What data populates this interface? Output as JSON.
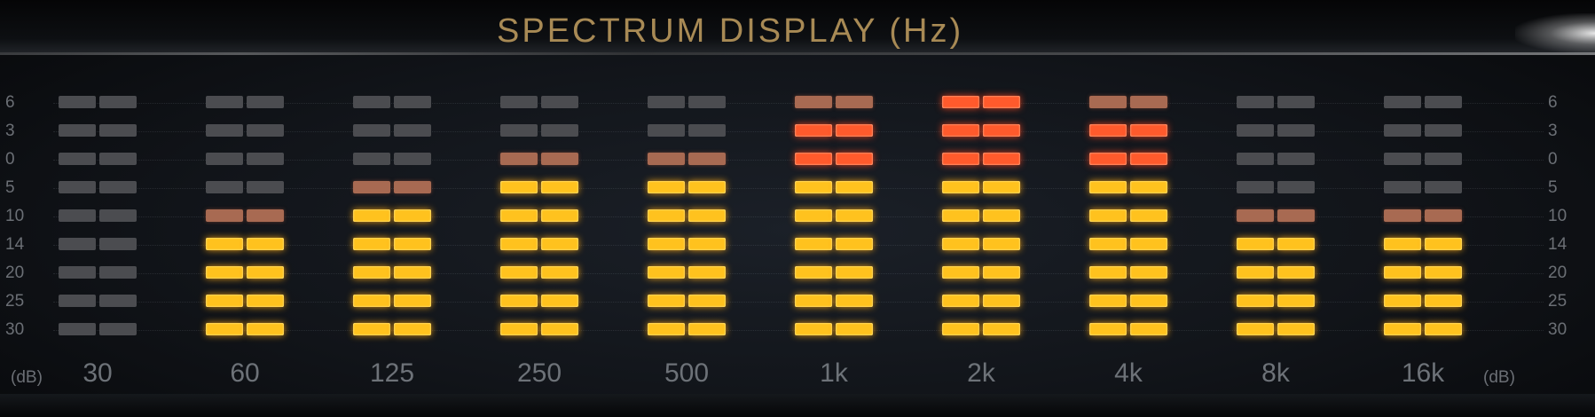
{
  "title": "SPECTRUM DISPLAY (Hz)",
  "db_scale": {
    "left": [
      "6",
      "3",
      "0",
      "5",
      "10",
      "14",
      "20",
      "25",
      "30"
    ],
    "right": [
      "6",
      "3",
      "0",
      "5",
      "10",
      "14",
      "20",
      "25",
      "30"
    ],
    "unit_left": "(dB)",
    "unit_right": "(dB)"
  },
  "colors": {
    "amber": "#ffc21e",
    "orange": "#ff5a2c",
    "dim": "#a86a52",
    "off": "#4b4c50"
  },
  "bands": [
    {
      "label": "30",
      "segments": [
        "off",
        "off",
        "off",
        "off",
        "off",
        "off",
        "off",
        "off",
        "off"
      ]
    },
    {
      "label": "60",
      "segments": [
        "off",
        "off",
        "off",
        "off",
        "dim",
        "amber",
        "amber",
        "amber",
        "amber"
      ]
    },
    {
      "label": "125",
      "segments": [
        "off",
        "off",
        "off",
        "dim",
        "amber",
        "amber",
        "amber",
        "amber",
        "amber"
      ]
    },
    {
      "label": "250",
      "segments": [
        "off",
        "off",
        "dim",
        "amber",
        "amber",
        "amber",
        "amber",
        "amber",
        "amber"
      ]
    },
    {
      "label": "500",
      "segments": [
        "off",
        "off",
        "dim",
        "amber",
        "amber",
        "amber",
        "amber",
        "amber",
        "amber"
      ]
    },
    {
      "label": "1k",
      "segments": [
        "dim",
        "orange",
        "orange",
        "amber",
        "amber",
        "amber",
        "amber",
        "amber",
        "amber"
      ]
    },
    {
      "label": "2k",
      "segments": [
        "orange",
        "orange",
        "orange",
        "amber",
        "amber",
        "amber",
        "amber",
        "amber",
        "amber"
      ]
    },
    {
      "label": "4k",
      "segments": [
        "dim",
        "orange",
        "orange",
        "amber",
        "amber",
        "amber",
        "amber",
        "amber",
        "amber"
      ]
    },
    {
      "label": "8k",
      "segments": [
        "off",
        "off",
        "off",
        "off",
        "dim",
        "amber",
        "amber",
        "amber",
        "amber"
      ]
    },
    {
      "label": "16k",
      "segments": [
        "off",
        "off",
        "off",
        "off",
        "dim",
        "amber",
        "amber",
        "amber",
        "amber"
      ]
    }
  ]
}
